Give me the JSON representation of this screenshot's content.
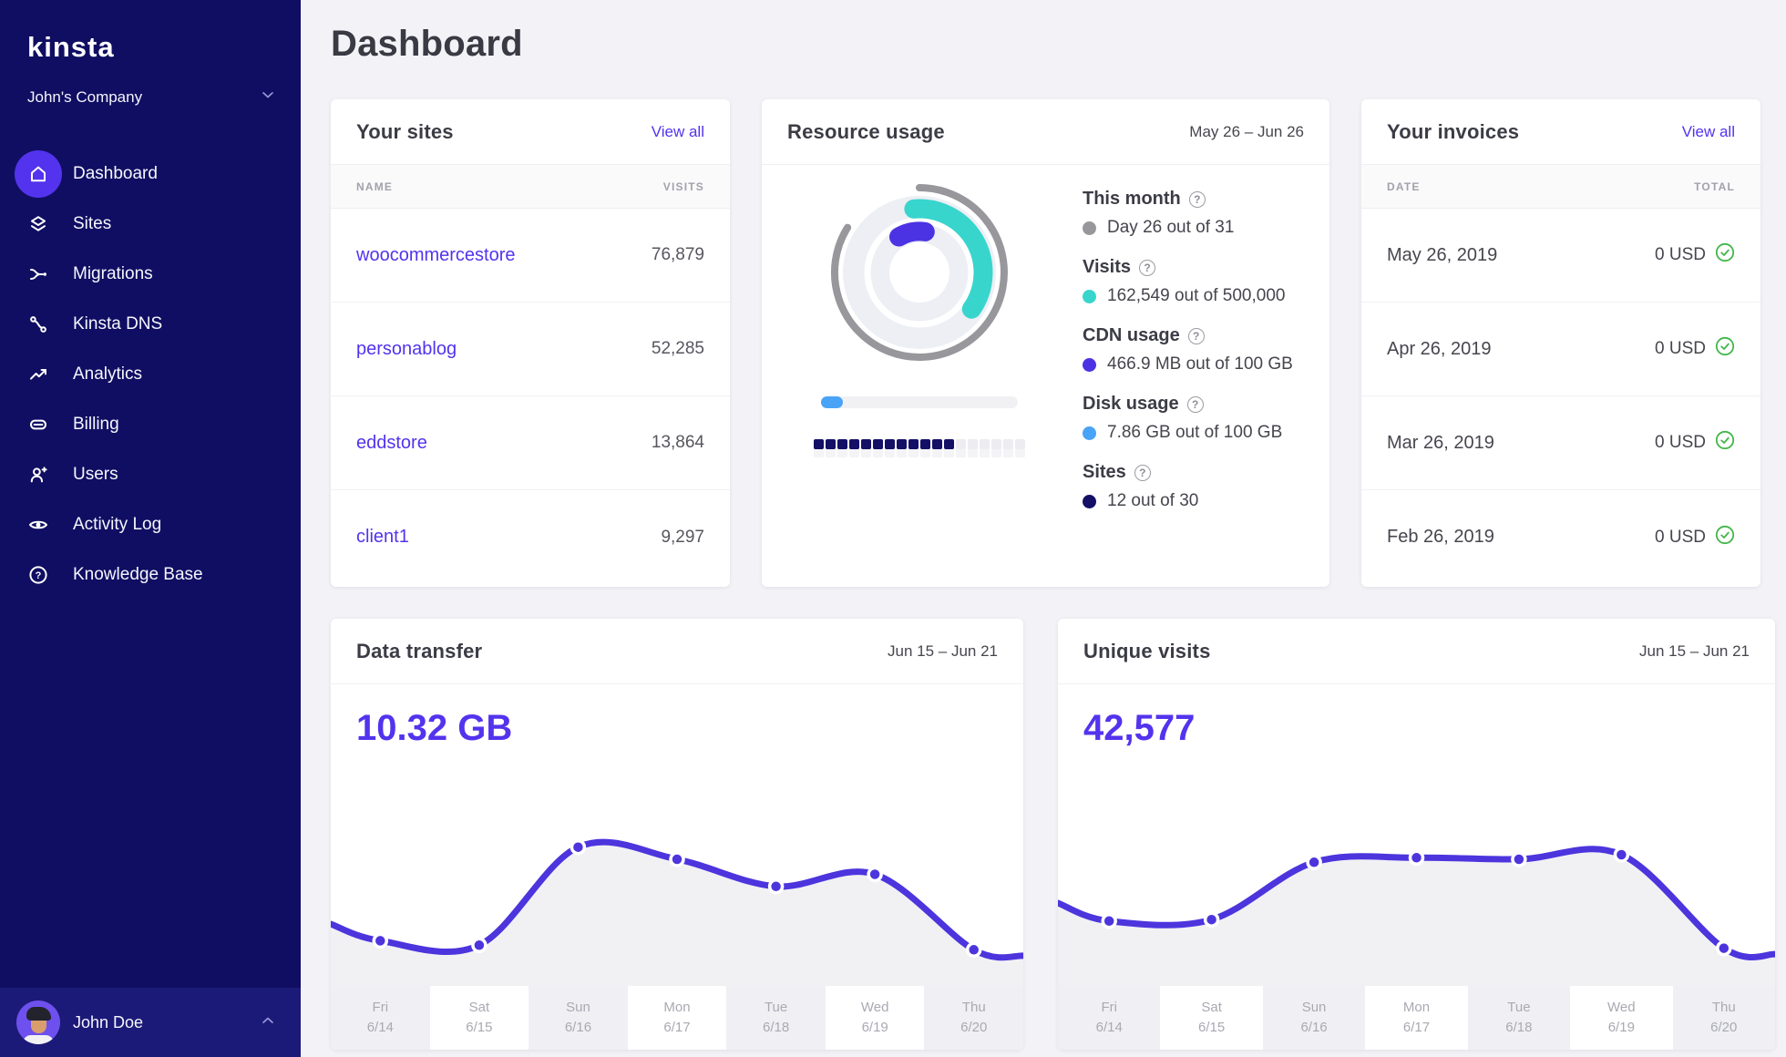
{
  "theme": {
    "accent": "#5333ed",
    "sidebar_bg": "#100e62",
    "sidebar_userbar_bg": "#1c1a78",
    "page_bg": "#f3f3f7",
    "line_color": "#4c35dd",
    "green_check": "#43b649"
  },
  "sidebar": {
    "logo_text": "kinsta",
    "company": "John's Company",
    "nav": [
      {
        "label": "Dashboard",
        "icon": "home-icon",
        "active": true
      },
      {
        "label": "Sites",
        "icon": "layers-icon",
        "active": false
      },
      {
        "label": "Migrations",
        "icon": "migrations-icon",
        "active": false
      },
      {
        "label": "Kinsta DNS",
        "icon": "dns-icon",
        "active": false
      },
      {
        "label": "Analytics",
        "icon": "analytics-icon",
        "active": false
      },
      {
        "label": "Billing",
        "icon": "billing-icon",
        "active": false
      },
      {
        "label": "Users",
        "icon": "user-plus-icon",
        "active": false
      },
      {
        "label": "Activity Log",
        "icon": "eye-icon",
        "active": false
      },
      {
        "label": "Knowledge Base",
        "icon": "help-icon",
        "active": false
      }
    ],
    "user": {
      "name": "John Doe"
    }
  },
  "page": {
    "title": "Dashboard"
  },
  "sites_card": {
    "title": "Your sites",
    "link": "View all",
    "col_name": "NAME",
    "col_visits": "VISITS",
    "rows": [
      {
        "name": "woocommercestore",
        "visits": "76,879"
      },
      {
        "name": "personablog",
        "visits": "52,285"
      },
      {
        "name": "eddstore",
        "visits": "13,864"
      },
      {
        "name": "client1",
        "visits": "9,297"
      }
    ]
  },
  "resource_card": {
    "title": "Resource usage",
    "range": "May 26 – Jun 26",
    "metrics": [
      {
        "label": "This month",
        "value": "Day 26 out of 31",
        "color": "#97979c"
      },
      {
        "label": "Visits",
        "value": "162,549 out of 500,000",
        "color": "#38d5cd"
      },
      {
        "label": "CDN usage",
        "value": "466.9 MB out of 100 GB",
        "color": "#4b33e4"
      },
      {
        "label": "Disk usage",
        "value": "7.86 GB out of 100 GB",
        "color": "#49a3f7"
      },
      {
        "label": "Sites",
        "value": "12 out of 30",
        "color": "#141065"
      }
    ],
    "donut": {
      "day_arc": [
        0,
        302
      ],
      "visits_arc": [
        -5,
        125
      ],
      "cdn_arc": [
        -30,
        8
      ],
      "ring_colors": {
        "day": "#97979c",
        "visits": "#38d5cd",
        "cdn": "#4b33e4"
      }
    },
    "disk_fill_pct": 11,
    "segments_total": 18,
    "segments_filled": 12
  },
  "invoices_card": {
    "title": "Your invoices",
    "link": "View all",
    "col_date": "DATE",
    "col_total": "TOTAL",
    "rows": [
      {
        "date": "May 26, 2019",
        "total": "0 USD"
      },
      {
        "date": "Apr 26, 2019",
        "total": "0 USD"
      },
      {
        "date": "Mar 26, 2019",
        "total": "0 USD"
      },
      {
        "date": "Feb 26, 2019",
        "total": "0 USD"
      }
    ]
  },
  "chart_data": [
    {
      "type": "donut",
      "title": "Resource usage",
      "rings": [
        {
          "name": "This month",
          "value": 26,
          "max": 31,
          "color": "#97979c"
        },
        {
          "name": "Visits",
          "value": 162549,
          "max": 500000,
          "color": "#38d5cd"
        },
        {
          "name": "CDN usage",
          "value": "466.9 MB",
          "max": "100 GB",
          "color": "#4b33e4"
        }
      ]
    },
    {
      "type": "line",
      "title": "Data transfer",
      "range": "Jun 15 – Jun 21",
      "total_label": "10.32 GB",
      "x": [
        "Fri 6/14",
        "Sat 6/15",
        "Sun 6/16",
        "Mon 6/17",
        "Tue 6/18",
        "Wed 6/19",
        "Thu 6/20"
      ],
      "labels": [
        {
          "day": "Fri",
          "date": "6/14"
        },
        {
          "day": "Sat",
          "date": "6/15"
        },
        {
          "day": "Sun",
          "date": "6/16"
        },
        {
          "day": "Mon",
          "date": "6/17"
        },
        {
          "day": "Tue",
          "date": "6/18"
        },
        {
          "day": "Wed",
          "date": "6/19"
        },
        {
          "day": "Thu",
          "date": "6/20"
        }
      ],
      "values_pct": [
        15,
        13.5,
        46,
        42,
        33,
        37,
        12
      ],
      "left_edge_pct": 20.5,
      "right_edge_pct": 10,
      "ylabel": "relative data transfer (no axis shown)"
    },
    {
      "type": "line",
      "title": "Unique visits",
      "range": "Jun 15 – Jun 21",
      "total_label": "42,577",
      "x": [
        "Fri 6/14",
        "Sat 6/15",
        "Sun 6/16",
        "Mon 6/17",
        "Tue 6/18",
        "Wed 6/19",
        "Thu 6/20"
      ],
      "labels": [
        {
          "day": "Fri",
          "date": "6/14"
        },
        {
          "day": "Sat",
          "date": "6/15"
        },
        {
          "day": "Sun",
          "date": "6/16"
        },
        {
          "day": "Mon",
          "date": "6/17"
        },
        {
          "day": "Tue",
          "date": "6/18"
        },
        {
          "day": "Wed",
          "date": "6/19"
        },
        {
          "day": "Thu",
          "date": "6/20"
        }
      ],
      "values_pct": [
        21.5,
        22,
        41,
        42.5,
        42,
        43.5,
        12.5
      ],
      "left_edge_pct": 27.5,
      "right_edge_pct": 10.5,
      "ylabel": "relative unique visits (no axis shown)"
    }
  ]
}
